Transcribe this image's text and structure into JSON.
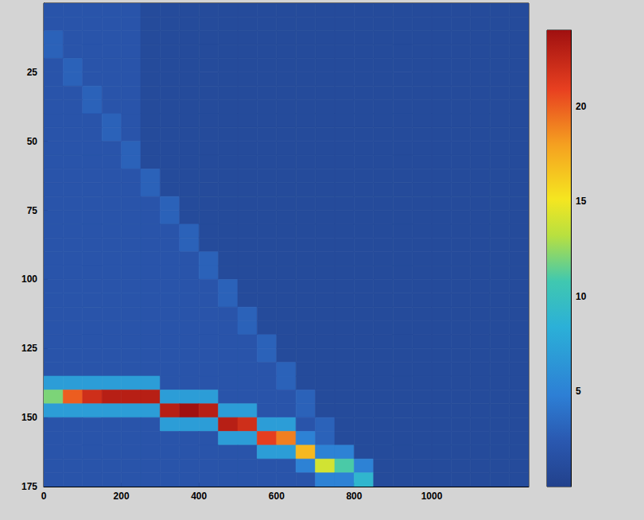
{
  "chart_data": {
    "type": "heatmap",
    "x": [
      25,
      75,
      125,
      175,
      225,
      275,
      325,
      375,
      425,
      475,
      525,
      575,
      625,
      675,
      725,
      775,
      825,
      875,
      925,
      975,
      1025,
      1075,
      1125,
      1175,
      1225
    ],
    "y": [
      2.5,
      7.5,
      12.5,
      17.5,
      22.5,
      27.5,
      32.5,
      37.5,
      42.5,
      47.5,
      52.5,
      57.5,
      62.5,
      67.5,
      72.5,
      77.5,
      82.5,
      87.5,
      92.5,
      97.5,
      102.5,
      107.5,
      112.5,
      117.5,
      122.5,
      127.5,
      132.5,
      137.5,
      142.5,
      147.5,
      152.5,
      157.5,
      162.5,
      167.5,
      172.5
    ],
    "values": [
      [
        2,
        2,
        2,
        2,
        2,
        1,
        1,
        1,
        1,
        1,
        1,
        1,
        1,
        1,
        1,
        1,
        1,
        1,
        1,
        1,
        1,
        1,
        1,
        1,
        1
      ],
      [
        2,
        2,
        2,
        2,
        2,
        1,
        1,
        1,
        1,
        1,
        1,
        1,
        1,
        1,
        1,
        1,
        1,
        1,
        1,
        1,
        1,
        1,
        1,
        1,
        1
      ],
      [
        3,
        2,
        2,
        2,
        2,
        1,
        1,
        1,
        1,
        1,
        1,
        1,
        1,
        1,
        1,
        1,
        1,
        1,
        1,
        1,
        1,
        1,
        1,
        1,
        1
      ],
      [
        3,
        2,
        2,
        2,
        2,
        1,
        1,
        1,
        1,
        1,
        1,
        1,
        1,
        1,
        1,
        1,
        1,
        1,
        1,
        1,
        1,
        1,
        1,
        1,
        1
      ],
      [
        2,
        3,
        2,
        2,
        2,
        1,
        1,
        1,
        1,
        1,
        1,
        1,
        1,
        1,
        1,
        1,
        1,
        1,
        1,
        1,
        1,
        1,
        1,
        1,
        1
      ],
      [
        2,
        3,
        2,
        2,
        2,
        1,
        1,
        1,
        1,
        1,
        1,
        1,
        1,
        1,
        1,
        1,
        1,
        1,
        1,
        1,
        1,
        1,
        1,
        1,
        1
      ],
      [
        2,
        2,
        3,
        2,
        2,
        1,
        1,
        1,
        1,
        1,
        1,
        1,
        1,
        1,
        1,
        1,
        1,
        1,
        1,
        1,
        1,
        1,
        1,
        1,
        1
      ],
      [
        2,
        2,
        3,
        2,
        2,
        1,
        1,
        1,
        1,
        1,
        1,
        1,
        1,
        1,
        1,
        1,
        1,
        1,
        1,
        1,
        1,
        1,
        1,
        1,
        1
      ],
      [
        2,
        2,
        2,
        3,
        2,
        1,
        1,
        1,
        1,
        1,
        1,
        1,
        1,
        1,
        1,
        1,
        1,
        1,
        1,
        1,
        1,
        1,
        1,
        1,
        1
      ],
      [
        2,
        2,
        2,
        3,
        2,
        1,
        1,
        1,
        1,
        1,
        1,
        1,
        1,
        1,
        1,
        1,
        1,
        1,
        1,
        1,
        1,
        1,
        1,
        1,
        1
      ],
      [
        2,
        2,
        2,
        2,
        3,
        1,
        1,
        1,
        1,
        1,
        1,
        1,
        1,
        1,
        1,
        1,
        1,
        1,
        1,
        1,
        1,
        1,
        1,
        1,
        1
      ],
      [
        2,
        2,
        2,
        2,
        3,
        1,
        1,
        1,
        1,
        1,
        1,
        1,
        1,
        1,
        1,
        1,
        1,
        1,
        1,
        1,
        1,
        1,
        1,
        1,
        1
      ],
      [
        2,
        2,
        2,
        2,
        2,
        3,
        1,
        1,
        1,
        1,
        1,
        1,
        1,
        1,
        1,
        1,
        1,
        1,
        1,
        1,
        1,
        1,
        1,
        1,
        1
      ],
      [
        2,
        2,
        2,
        2,
        2,
        3,
        1,
        1,
        1,
        1,
        1,
        1,
        1,
        1,
        1,
        1,
        1,
        1,
        1,
        1,
        1,
        1,
        1,
        1,
        1
      ],
      [
        2,
        2,
        2,
        2,
        2,
        2,
        3,
        1,
        1,
        1,
        1,
        1,
        1,
        1,
        1,
        1,
        1,
        1,
        1,
        1,
        1,
        1,
        1,
        1,
        1
      ],
      [
        2,
        2,
        2,
        2,
        2,
        2,
        3,
        1,
        1,
        1,
        1,
        1,
        1,
        1,
        1,
        1,
        1,
        1,
        1,
        1,
        1,
        1,
        1,
        1,
        1
      ],
      [
        2,
        2,
        2,
        2,
        2,
        2,
        2,
        3,
        1,
        1,
        1,
        1,
        1,
        1,
        1,
        1,
        1,
        1,
        1,
        1,
        1,
        1,
        1,
        1,
        1
      ],
      [
        2,
        2,
        2,
        2,
        2,
        2,
        2,
        3,
        1,
        1,
        1,
        1,
        1,
        1,
        1,
        1,
        1,
        1,
        1,
        1,
        1,
        1,
        1,
        1,
        1
      ],
      [
        2,
        2,
        2,
        2,
        2,
        2,
        2,
        2,
        3,
        1,
        1,
        1,
        1,
        1,
        1,
        1,
        1,
        1,
        1,
        1,
        1,
        1,
        1,
        1,
        1
      ],
      [
        2,
        2,
        2,
        2,
        2,
        2,
        2,
        2,
        3,
        1,
        1,
        1,
        1,
        1,
        1,
        1,
        1,
        1,
        1,
        1,
        1,
        1,
        1,
        1,
        1
      ],
      [
        2,
        2,
        2,
        2,
        2,
        2,
        2,
        2,
        2,
        3,
        1,
        1,
        1,
        1,
        1,
        1,
        1,
        1,
        1,
        1,
        1,
        1,
        1,
        1,
        1
      ],
      [
        2,
        2,
        2,
        2,
        2,
        2,
        2,
        2,
        2,
        3,
        1,
        1,
        1,
        1,
        1,
        1,
        1,
        1,
        1,
        1,
        1,
        1,
        1,
        1,
        1
      ],
      [
        2,
        2,
        2,
        2,
        2,
        2,
        2,
        2,
        2,
        2,
        3,
        1,
        1,
        1,
        1,
        1,
        1,
        1,
        1,
        1,
        1,
        1,
        1,
        1,
        1
      ],
      [
        2,
        2,
        2,
        2,
        2,
        2,
        2,
        2,
        2,
        2,
        3,
        1,
        1,
        1,
        1,
        1,
        1,
        1,
        1,
        1,
        1,
        1,
        1,
        1,
        1
      ],
      [
        2,
        2,
        2,
        2,
        2,
        2,
        2,
        2,
        2,
        2,
        2,
        3,
        1,
        1,
        1,
        1,
        1,
        1,
        1,
        1,
        1,
        1,
        1,
        1,
        1
      ],
      [
        2,
        2,
        2,
        2,
        2,
        2,
        2,
        2,
        2,
        2,
        2,
        3,
        1,
        1,
        1,
        1,
        1,
        1,
        1,
        1,
        1,
        1,
        1,
        1,
        1
      ],
      [
        2,
        2,
        2,
        2,
        2,
        2,
        2,
        2,
        2,
        2,
        2,
        2,
        3,
        1,
        1,
        1,
        1,
        1,
        1,
        1,
        1,
        1,
        1,
        1,
        1
      ],
      [
        7,
        7,
        7,
        7,
        7,
        7,
        2,
        2,
        2,
        2,
        2,
        2,
        3,
        1,
        1,
        1,
        1,
        1,
        1,
        1,
        1,
        1,
        1,
        1,
        1
      ],
      [
        12,
        20,
        22,
        23,
        23,
        23,
        7,
        7,
        7,
        2,
        2,
        2,
        2,
        3,
        1,
        1,
        1,
        1,
        1,
        1,
        1,
        1,
        1,
        1,
        1
      ],
      [
        7,
        7,
        7,
        7,
        7,
        7,
        23,
        24,
        23,
        7,
        7,
        2,
        2,
        3,
        1,
        1,
        1,
        1,
        1,
        1,
        1,
        1,
        1,
        1,
        1
      ],
      [
        2,
        2,
        2,
        2,
        2,
        2,
        7,
        7,
        7,
        23,
        22,
        7,
        7,
        2,
        3,
        1,
        1,
        1,
        1,
        1,
        1,
        1,
        1,
        1,
        1
      ],
      [
        2,
        2,
        2,
        2,
        2,
        2,
        2,
        2,
        2,
        7,
        7,
        21,
        19,
        5,
        3,
        1,
        1,
        1,
        1,
        1,
        1,
        1,
        1,
        1,
        1
      ],
      [
        2,
        2,
        2,
        2,
        2,
        2,
        2,
        2,
        2,
        2,
        2,
        7,
        7,
        17,
        5,
        5,
        1,
        1,
        1,
        1,
        1,
        1,
        1,
        1,
        1
      ],
      [
        2,
        2,
        2,
        2,
        2,
        2,
        2,
        2,
        2,
        2,
        2,
        2,
        2,
        5,
        14,
        11,
        5,
        1,
        1,
        1,
        1,
        1,
        1,
        1,
        1
      ],
      [
        2,
        2,
        2,
        2,
        2,
        2,
        2,
        2,
        2,
        2,
        2,
        2,
        2,
        2,
        5,
        5,
        9,
        1,
        1,
        1,
        1,
        1,
        1,
        1,
        1
      ]
    ],
    "xlim": [
      0,
      1250
    ],
    "xticks": [
      0,
      200,
      400,
      600,
      800,
      1000
    ],
    "ylim": [
      0,
      175
    ],
    "yticks": [
      25,
      50,
      75,
      100,
      125,
      150,
      175
    ],
    "color_range": [
      0,
      24
    ],
    "color_ticks": [
      5,
      10,
      15,
      20
    ]
  }
}
